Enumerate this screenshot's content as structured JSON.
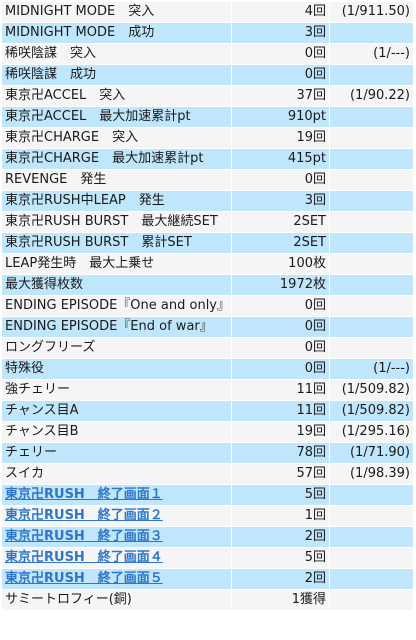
{
  "rows": [
    {
      "label": "MIDNIGHT MODE　突入",
      "count": "4回",
      "prob": "(1/911.50)",
      "tint": "white",
      "link": false
    },
    {
      "label": "MIDNIGHT MODE　成功",
      "count": "3回",
      "prob": "",
      "tint": "blue",
      "link": false
    },
    {
      "label": "稀咲陰謀　突入",
      "count": "0回",
      "prob": "(1/---)",
      "tint": "white",
      "link": false
    },
    {
      "label": "稀咲陰謀　成功",
      "count": "0回",
      "prob": "",
      "tint": "blue",
      "link": false
    },
    {
      "label": "東京卍ACCEL　突入",
      "count": "37回",
      "prob": "(1/90.22)",
      "tint": "white",
      "link": false
    },
    {
      "label": "東京卍ACCEL　最大加速累計pt",
      "count": "910pt",
      "prob": "",
      "tint": "blue",
      "link": false
    },
    {
      "label": "東京卍CHARGE　突入",
      "count": "19回",
      "prob": "",
      "tint": "white",
      "link": false
    },
    {
      "label": "東京卍CHARGE　最大加速累計pt",
      "count": "415pt",
      "prob": "",
      "tint": "blue",
      "link": false
    },
    {
      "label": "REVENGE　発生",
      "count": "0回",
      "prob": "",
      "tint": "white",
      "link": false
    },
    {
      "label": "東京卍RUSH中LEAP　発生",
      "count": "3回",
      "prob": "",
      "tint": "blue",
      "link": false
    },
    {
      "label": "東京卍RUSH BURST　最大継続SET",
      "count": "2SET",
      "prob": "",
      "tint": "white",
      "link": false
    },
    {
      "label": "東京卍RUSH BURST　累計SET",
      "count": "2SET",
      "prob": "",
      "tint": "blue",
      "link": false
    },
    {
      "label": "LEAP発生時　最大上乗せ",
      "count": "100枚",
      "prob": "",
      "tint": "white",
      "link": false
    },
    {
      "label": "最大獲得枚数",
      "count": "1972枚",
      "prob": "",
      "tint": "blue",
      "link": false
    },
    {
      "label": "ENDING EPISODE『One and only』",
      "count": "0回",
      "prob": "",
      "tint": "white",
      "link": false
    },
    {
      "label": "ENDING EPISODE『End of war』",
      "count": "0回",
      "prob": "",
      "tint": "blue",
      "link": false
    },
    {
      "label": "ロングフリーズ",
      "count": "0回",
      "prob": "",
      "tint": "white",
      "link": false
    },
    {
      "label": "特殊役",
      "count": "0回",
      "prob": "(1/---)",
      "tint": "blue",
      "link": false
    },
    {
      "label": "強チェリー",
      "count": "11回",
      "prob": "(1/509.82)",
      "tint": "white",
      "link": false
    },
    {
      "label": "チャンス目A",
      "count": "11回",
      "prob": "(1/509.82)",
      "tint": "blue",
      "link": false
    },
    {
      "label": "チャンス目B",
      "count": "19回",
      "prob": "(1/295.16)",
      "tint": "white",
      "link": false
    },
    {
      "label": "チェリー",
      "count": "78回",
      "prob": "(1/71.90)",
      "tint": "blue",
      "link": false
    },
    {
      "label": "スイカ",
      "count": "57回",
      "prob": "(1/98.39)",
      "tint": "white",
      "link": false
    },
    {
      "label": "東京卍RUSH　終了画面１",
      "count": "5回",
      "prob": "",
      "tint": "blue",
      "link": true
    },
    {
      "label": "東京卍RUSH　終了画面２",
      "count": "1回",
      "prob": "",
      "tint": "white",
      "link": true
    },
    {
      "label": "東京卍RUSH　終了画面３",
      "count": "2回",
      "prob": "",
      "tint": "blue",
      "link": true
    },
    {
      "label": "東京卍RUSH　終了画面４",
      "count": "5回",
      "prob": "",
      "tint": "white",
      "link": true
    },
    {
      "label": "東京卍RUSH　終了画面５",
      "count": "2回",
      "prob": "",
      "tint": "blue",
      "link": true
    },
    {
      "label": "サミートロフィー(銅)",
      "count": "1獲得",
      "prob": "",
      "tint": "white",
      "link": false
    }
  ]
}
